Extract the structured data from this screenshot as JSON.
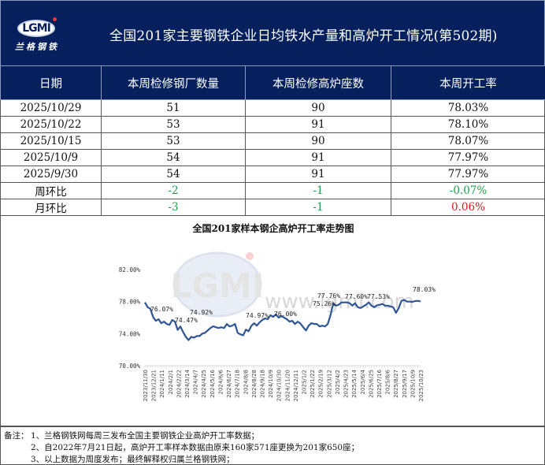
{
  "header": {
    "logo_text_en": "LGMI",
    "logo_text_cn": "兰格钢铁",
    "title": "全国201家主要钢铁企业日均铁水产量和高炉开工情况(第502期)"
  },
  "table": {
    "columns": [
      "日期",
      "本周检修钢厂数量",
      "本周检修高炉座数",
      "本周开工率"
    ],
    "rows": [
      {
        "date": "2025/10/29",
        "mills": "51",
        "furnaces": "90",
        "rate": "78.03%"
      },
      {
        "date": "2025/10/22",
        "mills": "53",
        "furnaces": "91",
        "rate": "78.10%"
      },
      {
        "date": "2025/10/15",
        "mills": "53",
        "furnaces": "90",
        "rate": "78.07%"
      },
      {
        "date": "2025/10/9",
        "mills": "54",
        "furnaces": "91",
        "rate": "77.97%"
      },
      {
        "date": "2025/9/30",
        "mills": "54",
        "furnaces": "91",
        "rate": "77.97%"
      }
    ],
    "week_change": {
      "label": "周环比",
      "mills": "-2",
      "furnaces": "-1",
      "rate": "-0.07%"
    },
    "month_change": {
      "label": "月环比",
      "mills": "-3",
      "furnaces": "-1",
      "rate": "0.06%"
    },
    "colors": {
      "header_bg": "#05205c",
      "decrease": "#1aa04a",
      "increase": "#e31b1b"
    }
  },
  "chart_data": {
    "type": "line",
    "title": "全国201家样本钢企高炉开工率走势图",
    "xlabel": "",
    "ylabel": "",
    "ylim": [
      70,
      82
    ],
    "yticks": [
      "82.00%",
      "78.00%",
      "74.00%",
      "70.00%"
    ],
    "x_tick_labels": [
      "2023/11/30",
      "2023/12/21",
      "2024/1/11",
      "2024/2/1",
      "2024/2/22",
      "2024/3/14",
      "2024/4/7",
      "2024/4/25",
      "2024/5/16",
      "2024/6/6",
      "2024/6/27",
      "2024/7/18",
      "2024/8/8",
      "2024/8/28",
      "2024/9/18",
      "2024/10/9",
      "2024/10/30",
      "2024/11/20",
      "2024/12/11",
      "2025/1/2",
      "2025/1/22",
      "2025/2/19",
      "2025/3/12",
      "2025/4/2",
      "2025/4/23",
      "2025/5/14",
      "2025/6/4",
      "2025/6/25",
      "2025/7/16",
      "2025/8/6",
      "2025/8/27",
      "2025/9/17",
      "2025/10/9",
      "2025/10/23"
    ],
    "series": [
      {
        "name": "高炉开工率",
        "color": "#2f5597",
        "values": [
          77.9,
          77.3,
          77.1,
          76.07,
          75.6,
          75.8,
          75.3,
          75.5,
          75.2,
          75.1,
          75.7,
          75.5,
          74.47,
          74.9,
          74.2,
          73.6,
          73.2,
          73.6,
          73.5,
          73.7,
          73.7,
          74.0,
          74.1,
          74.4,
          74.7,
          74.92,
          74.8,
          74.7,
          74.8,
          74.7,
          75.2,
          74.9,
          75.0,
          75.2,
          74.1,
          73.9,
          73.8,
          74.5,
          74.3,
          74.97,
          75.3,
          75.0,
          75.4,
          75.7,
          75.9,
          75.8,
          76.3,
          76.1,
          76.4,
          76.0,
          76.2,
          76.0,
          75.8,
          75.5,
          75.6,
          75.2,
          75.5,
          75.26,
          74.8,
          74.4,
          75.0,
          75.3,
          75.2,
          75.2,
          74.9,
          75.0,
          74.9,
          75.2,
          76.3,
          77.76,
          77.5,
          77.6,
          77.9,
          77.9,
          77.9,
          77.8,
          77.5,
          77.8,
          77.3,
          77.2,
          77.4,
          77.6,
          77.9,
          77.5,
          77.3,
          77.53,
          77.6,
          77.7,
          77.5,
          77.5,
          77.4,
          77.3,
          76.6,
          77.2,
          78.1,
          78.2,
          78.0,
          78.0,
          77.97,
          78.07,
          78.1,
          78.03
        ],
        "annotations": [
          {
            "label": "76.07%"
          },
          {
            "label": "74.47%"
          },
          {
            "label": "74.92%"
          },
          {
            "label": "74.97%"
          },
          {
            "label": "76.00%"
          },
          {
            "label": "75.26%"
          },
          {
            "label": "77.76%"
          },
          {
            "label": "77.60%"
          },
          {
            "label": "77.53%"
          },
          {
            "label": "78.03%"
          }
        ]
      }
    ],
    "watermark": {
      "logo": "LGMI",
      "url": "www.lgmi.com"
    },
    "grid": false,
    "legend": "none"
  },
  "notes": {
    "prefix": "备注：",
    "items": [
      "1、兰格钢铁网每周三发布全国主要钢铁企业高炉开工率数据；",
      "2、自2022年7月21日起，高炉开工率样本数据由原来160家571座更换为201家650座；",
      "3、以上数据为周度发布；最终解释权归属兰格钢铁网；"
    ]
  }
}
